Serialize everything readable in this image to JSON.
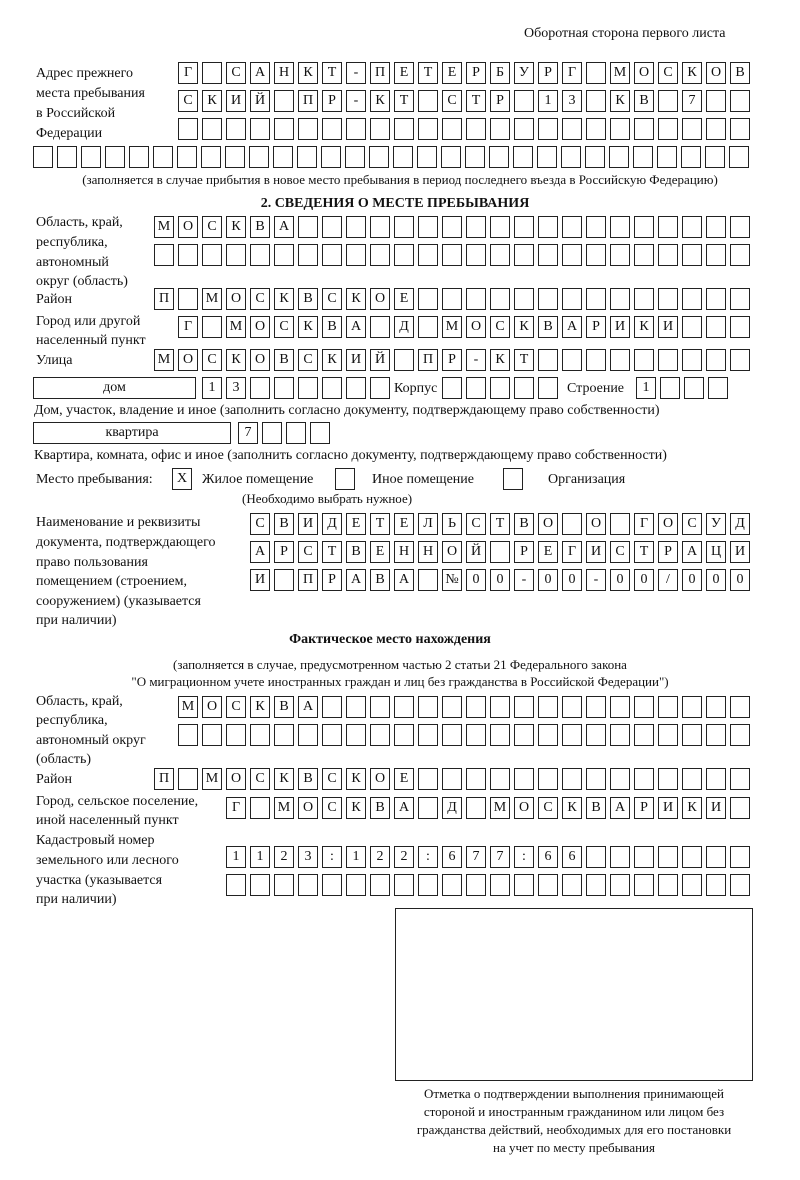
{
  "header": "Оборотная сторона первого листа",
  "prev_address": {
    "label": [
      "Адрес прежнего",
      "места пребывания",
      "в Российской",
      "Федерации"
    ],
    "rows": [
      "Г САНКТ-ПЕТЕРБУРГ МОСКОВ",
      "СКИЙ ПР-КТ СТР 13 КВ 7",
      "",
      ""
    ],
    "note": "(заполняется в случае прибытия в новое место пребывания в период последнего въезда в Российскую Федерацию)"
  },
  "section2": {
    "title": "2. СВЕДЕНИЯ О МЕСТЕ ПРЕБЫВАНИЯ",
    "region_label": [
      "Область, край,",
      "республика,",
      "автономный",
      "округ (область)"
    ],
    "region_rows": [
      "МОСКВА",
      ""
    ],
    "district_label": "Район",
    "district": "П МОСКВСКОЕ",
    "city_label": [
      "Город или другой",
      "населенный пункт"
    ],
    "city": "Г МОСКВА Д МОСКВАРИКИ",
    "street_label": "Улица",
    "street": "МОСКОВСКИЙ ПР-КТ",
    "house_type": "дом",
    "house": "13",
    "korpus_label": "Корпус",
    "korpus": "",
    "building_label": "Строение",
    "building": "1",
    "house_note": "Дом, участок, владение и иное (заполнить согласно документу, подтверждающему право собственности)",
    "flat_type": "квартира",
    "flat": "7",
    "flat_note": "Квартира, комната, офис и иное (заполнить согласно документу, подтверждающему право собственности)",
    "place_label": "Место пребывания:",
    "place_options": [
      {
        "label": "Жилое помещение",
        "checked": true,
        "mark": "X"
      },
      {
        "label": "Иное помещение",
        "checked": false,
        "mark": ""
      },
      {
        "label": "Организация",
        "checked": false,
        "mark": ""
      }
    ],
    "place_note": "(Необходимо выбрать нужное)",
    "doc_label": [
      "Наименование и реквизиты",
      "документа, подтверждающего",
      "право пользования",
      "помещением (строением,",
      "сооружением) (указывается",
      "при наличии)"
    ],
    "doc_rows": [
      "СВИДЕТЕЛЬСТВО О ГОСУД",
      "АРСТВЕННОЙ РЕГИСТРАЦИ",
      "И ПРАВА №00-00-00/000"
    ]
  },
  "actual": {
    "title": "Фактическое место нахождения",
    "note": [
      "(заполняется в случае, предусмотренном частью 2 статьи 21 Федерального закона",
      "\"О миграционном учете иностранных граждан и лиц без гражданства в Российской Федерации\")"
    ],
    "region_label": [
      "Область, край,",
      "республика,",
      "автономный округ",
      "(область)"
    ],
    "region_rows": [
      "МОСКВА",
      ""
    ],
    "district_label": "Район",
    "district": "П МОСКВСКОЕ",
    "city_label": [
      "Город, сельское поселение,",
      "иной населенный пункт"
    ],
    "city": "Г МОСКВА Д МОСКВАРИКИ",
    "cadastre_label": [
      "Кадастровый номер",
      "земельного или лесного",
      "участка (указывается",
      "при наличии)"
    ],
    "cadastre_rows": [
      "1123:122:677:66",
      ""
    ]
  },
  "stamp_caption": [
    "Отметка о подтверждении выполнения принимающей",
    "стороной и иностранным гражданином или лицом без",
    "гражданства действий, необходимых для его постановки",
    "на учет по месту пребывания"
  ]
}
